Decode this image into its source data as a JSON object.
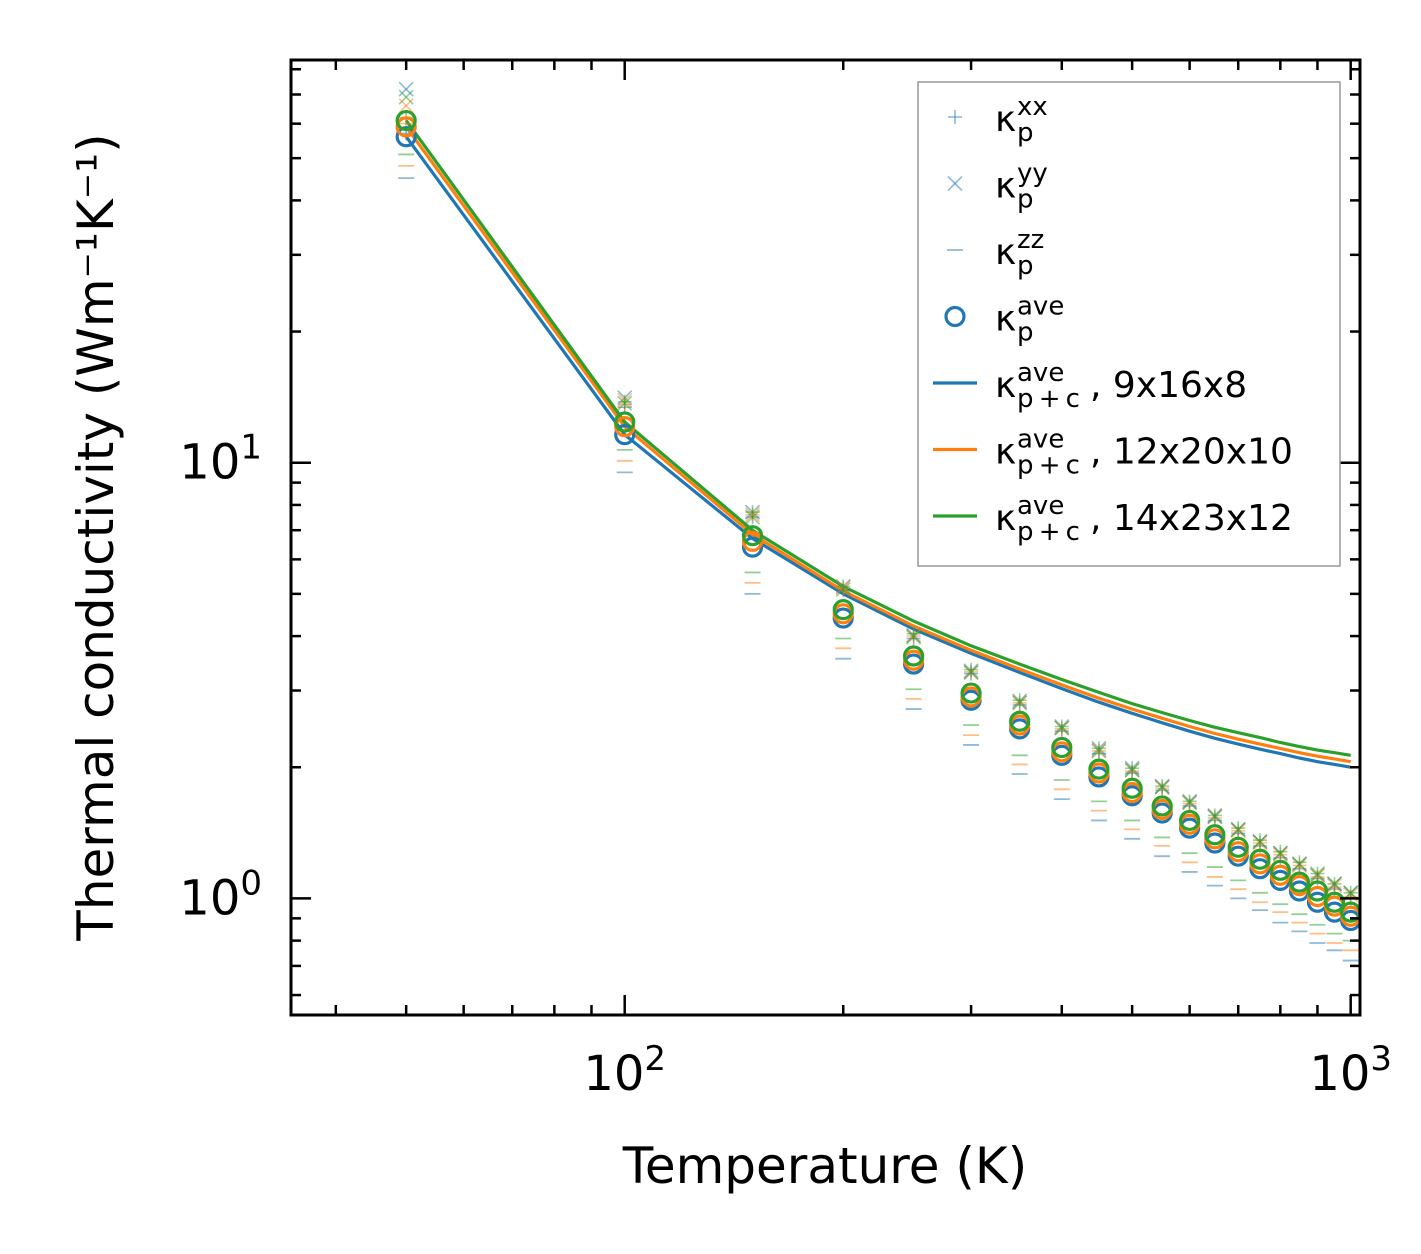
{
  "chart_data": {
    "type": "scatter",
    "title": "",
    "xlabel": "Temperature (K)",
    "ylabel": "Thermal conductivity (Wm⁻¹K⁻¹)",
    "xscale": "log",
    "yscale": "log",
    "xlim": [
      34.7,
      1030
    ],
    "ylim": [
      0.54,
      84
    ],
    "x_ticks": [
      {
        "value": 100,
        "base": "10",
        "exp": "2"
      },
      {
        "value": 1000,
        "base": "10",
        "exp": "3"
      }
    ],
    "y_ticks": [
      {
        "value": 1,
        "base": "10",
        "exp": "0"
      },
      {
        "value": 10,
        "base": "10",
        "exp": "1"
      }
    ],
    "grid": false,
    "legend_position": "top-right",
    "temperatures": [
      50,
      100,
      150,
      200,
      250,
      300,
      350,
      400,
      450,
      500,
      550,
      600,
      650,
      700,
      750,
      800,
      850,
      900,
      950,
      1000
    ],
    "colors": {
      "blue": "#1f77b4",
      "orange": "#ff7f0e",
      "green": "#2ca02c"
    },
    "legend": [
      {
        "marker": "plus",
        "label": "κ",
        "sub": "p",
        "sup": "xx",
        "suffix": ""
      },
      {
        "marker": "cross",
        "label": "κ",
        "sub": "p",
        "sup": "yy",
        "suffix": ""
      },
      {
        "marker": "dash",
        "label": "κ",
        "sub": "p",
        "sup": "zz",
        "suffix": ""
      },
      {
        "marker": "circle",
        "label": "κ",
        "sub": "p",
        "sup": "ave",
        "suffix": ""
      },
      {
        "marker": "line",
        "color": "blue",
        "label": "κ",
        "sub": "p + c",
        "sup": "ave",
        "suffix": ", 9x16x8"
      },
      {
        "marker": "line",
        "color": "orange",
        "label": "κ",
        "sub": "p + c",
        "sup": "ave",
        "suffix": ", 12x20x10"
      },
      {
        "marker": "line",
        "color": "green",
        "label": "κ",
        "sub": "p + c",
        "sup": "ave",
        "suffix": ", 14x23x12"
      }
    ],
    "series": [
      {
        "name": "9x16x8",
        "color": "blue",
        "kp_xx": [
          57.0,
          13.4,
          7.5,
          5.1,
          3.95,
          3.28,
          2.78,
          2.42,
          2.15,
          1.94,
          1.77,
          1.63,
          1.51,
          1.41,
          1.32,
          1.24,
          1.17,
          1.11,
          1.05,
          1.0
        ],
        "kp_yy": [
          72.0,
          14.1,
          7.7,
          5.2,
          4.02,
          3.33,
          2.84,
          2.48,
          2.21,
          1.99,
          1.81,
          1.67,
          1.55,
          1.44,
          1.35,
          1.27,
          1.2,
          1.13,
          1.08,
          1.03
        ],
        "kp_zz": [
          45.0,
          9.5,
          5.0,
          3.55,
          2.72,
          2.25,
          1.93,
          1.69,
          1.51,
          1.37,
          1.25,
          1.15,
          1.07,
          1.0,
          0.94,
          0.88,
          0.84,
          0.79,
          0.76,
          0.72
        ],
        "kp_ave": [
          56.0,
          11.6,
          6.4,
          4.4,
          3.45,
          2.85,
          2.45,
          2.13,
          1.9,
          1.72,
          1.57,
          1.45,
          1.34,
          1.25,
          1.17,
          1.1,
          1.04,
          0.98,
          0.93,
          0.89
        ],
        "kpc_ave": [
          56.0,
          11.6,
          6.7,
          5.0,
          4.15,
          3.65,
          3.3,
          3.03,
          2.82,
          2.66,
          2.53,
          2.42,
          2.33,
          2.26,
          2.2,
          2.15,
          2.1,
          2.06,
          2.03,
          2.0
        ]
      },
      {
        "name": "12x20x10",
        "color": "orange",
        "kp_xx": [
          60.0,
          13.6,
          7.6,
          5.15,
          4.0,
          3.31,
          2.81,
          2.45,
          2.18,
          1.96,
          1.79,
          1.65,
          1.53,
          1.43,
          1.34,
          1.26,
          1.19,
          1.12,
          1.06,
          1.01
        ],
        "kp_yy": [
          66.0,
          13.9,
          7.6,
          5.18,
          4.0,
          3.3,
          2.82,
          2.46,
          2.19,
          1.97,
          1.8,
          1.66,
          1.54,
          1.43,
          1.34,
          1.26,
          1.19,
          1.13,
          1.07,
          1.02
        ],
        "kp_zz": [
          48.0,
          10.1,
          5.3,
          3.75,
          2.87,
          2.37,
          2.03,
          1.78,
          1.59,
          1.44,
          1.32,
          1.21,
          1.12,
          1.05,
          0.98,
          0.93,
          0.88,
          0.83,
          0.79,
          0.76
        ],
        "kp_ave": [
          59.0,
          12.1,
          6.6,
          4.5,
          3.52,
          2.9,
          2.5,
          2.17,
          1.94,
          1.75,
          1.6,
          1.48,
          1.37,
          1.28,
          1.2,
          1.13,
          1.07,
          1.01,
          0.96,
          0.91
        ],
        "kpc_ave": [
          59.0,
          12.1,
          6.85,
          5.08,
          4.22,
          3.71,
          3.36,
          3.09,
          2.88,
          2.72,
          2.59,
          2.48,
          2.39,
          2.32,
          2.26,
          2.21,
          2.16,
          2.12,
          2.09,
          2.06
        ]
      },
      {
        "name": "14x23x12",
        "color": "green",
        "kp_xx": [
          62.0,
          13.8,
          7.7,
          5.2,
          4.05,
          3.35,
          2.85,
          2.48,
          2.21,
          1.99,
          1.81,
          1.67,
          1.55,
          1.45,
          1.36,
          1.28,
          1.21,
          1.14,
          1.08,
          1.03
        ],
        "kp_yy": [
          69.0,
          13.7,
          7.5,
          5.12,
          3.98,
          3.3,
          2.81,
          2.46,
          2.18,
          1.97,
          1.8,
          1.66,
          1.54,
          1.44,
          1.35,
          1.27,
          1.2,
          1.14,
          1.08,
          1.03
        ],
        "kp_zz": [
          51.0,
          10.7,
          5.6,
          3.95,
          3.02,
          2.5,
          2.13,
          1.87,
          1.67,
          1.51,
          1.38,
          1.27,
          1.18,
          1.1,
          1.03,
          0.97,
          0.92,
          0.87,
          0.83,
          0.8
        ],
        "kp_ave": [
          61.0,
          12.4,
          6.8,
          4.6,
          3.6,
          2.96,
          2.55,
          2.22,
          1.98,
          1.79,
          1.63,
          1.51,
          1.4,
          1.31,
          1.23,
          1.16,
          1.09,
          1.04,
          0.98,
          0.93
        ],
        "kpc_ave": [
          61.0,
          12.4,
          7.0,
          5.2,
          4.33,
          3.8,
          3.45,
          3.18,
          2.97,
          2.8,
          2.67,
          2.56,
          2.47,
          2.4,
          2.34,
          2.28,
          2.23,
          2.19,
          2.16,
          2.13
        ]
      }
    ]
  }
}
